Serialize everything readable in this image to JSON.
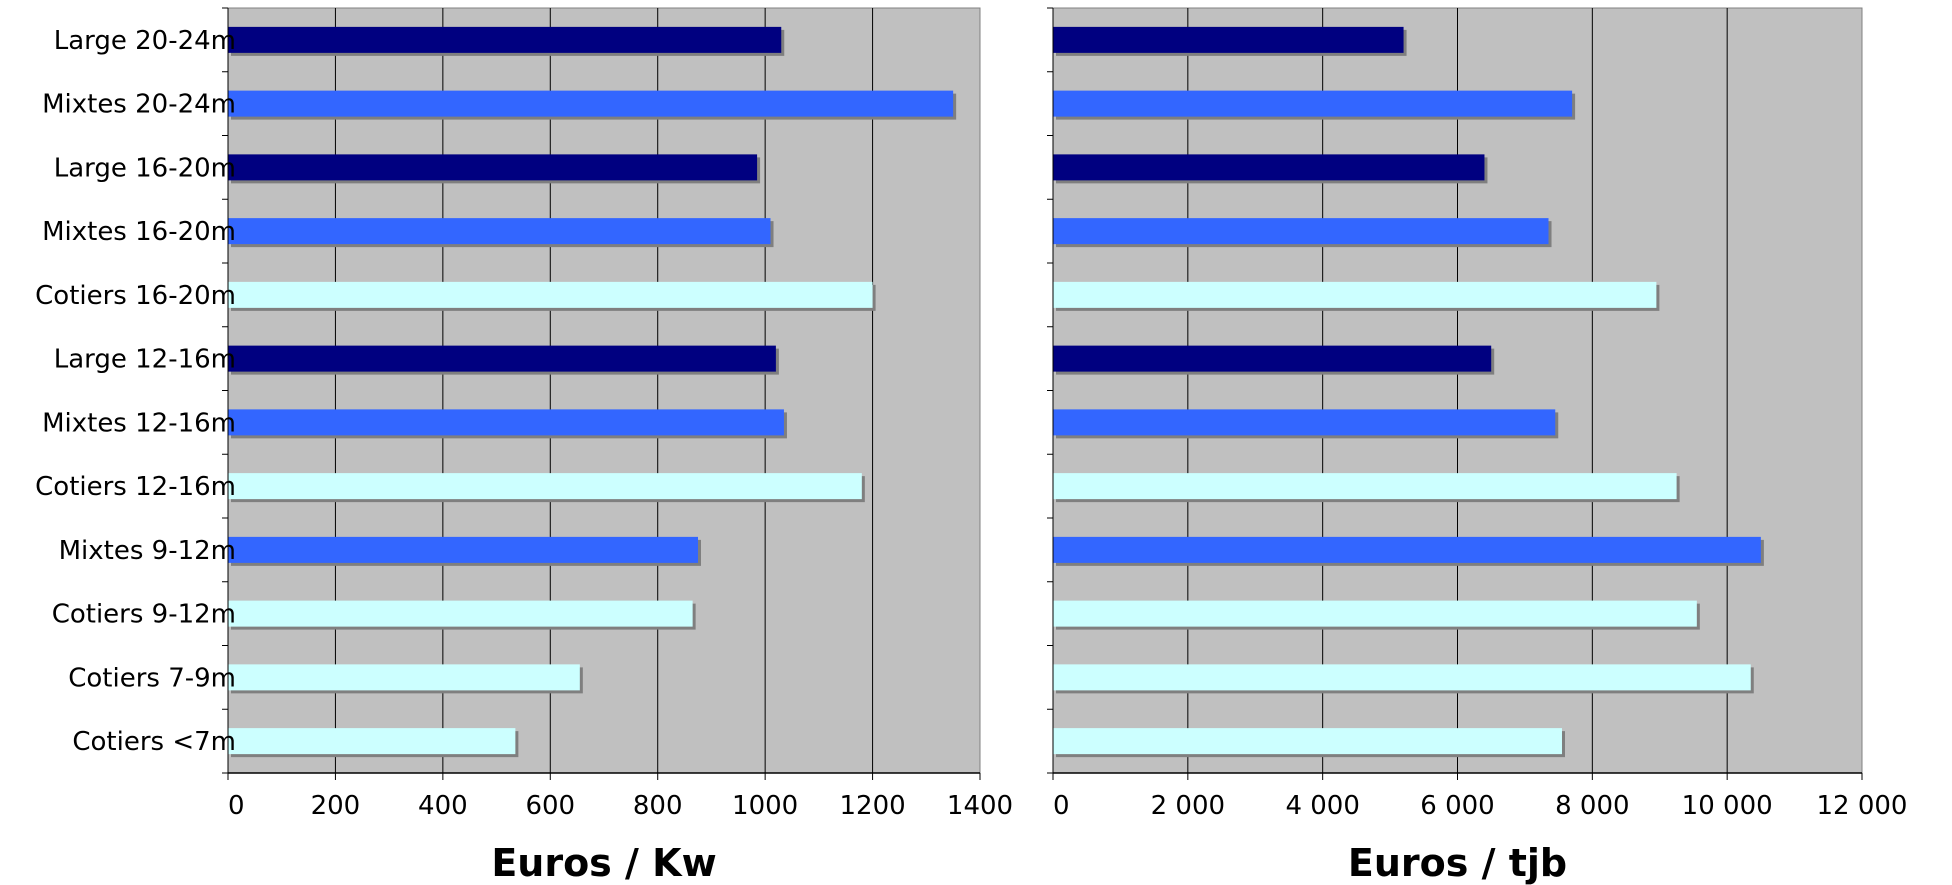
{
  "chart_data": [
    {
      "type": "bar",
      "orientation": "horizontal",
      "categories": [
        "Large 20-24m",
        "Mixtes 20-24m",
        "Large 16-20m",
        "Mixtes 16-20m",
        "Cotiers 16-20m",
        "Large 12-16m",
        "Mixtes 12-16m",
        "Cotiers 12-16m",
        "Mixtes 9-12m",
        "Cotiers 9-12m",
        "Cotiers 7-9m",
        "Cotiers <7m"
      ],
      "values": [
        1030,
        1350,
        985,
        1010,
        1200,
        1020,
        1035,
        1180,
        875,
        865,
        655,
        535
      ],
      "bar_colors": [
        "#000080",
        "#3366ff",
        "#000080",
        "#3366ff",
        "#ccffff",
        "#000080",
        "#3366ff",
        "#ccffff",
        "#3366ff",
        "#ccffff",
        "#ccffff",
        "#ccffff"
      ],
      "xlabel": "Euros / Kw",
      "xlim": [
        0,
        1400
      ],
      "xticks": [
        0,
        200,
        400,
        600,
        800,
        1000,
        1200,
        1400
      ],
      "xtick_labels": [
        "0",
        "200",
        "400",
        "600",
        "800",
        "1000",
        "1200",
        "1400"
      ],
      "plot_background": "#c0c0c0",
      "gridlines": true
    },
    {
      "type": "bar",
      "orientation": "horizontal",
      "categories": [
        "Large 20-24m",
        "Mixtes 20-24m",
        "Large 16-20m",
        "Mixtes 16-20m",
        "Cotiers 16-20m",
        "Large 12-16m",
        "Mixtes 12-16m",
        "Cotiers 12-16m",
        "Mixtes 9-12m",
        "Cotiers 9-12m",
        "Cotiers 7-9m",
        "Cotiers <7m"
      ],
      "values": [
        5200,
        7700,
        6400,
        7350,
        8950,
        6500,
        7450,
        9250,
        10500,
        9550,
        10350,
        7550
      ],
      "bar_colors": [
        "#000080",
        "#3366ff",
        "#000080",
        "#3366ff",
        "#ccffff",
        "#000080",
        "#3366ff",
        "#ccffff",
        "#3366ff",
        "#ccffff",
        "#ccffff",
        "#ccffff"
      ],
      "xlabel": "Euros / tjb",
      "xlim": [
        0,
        12000
      ],
      "xticks": [
        0,
        2000,
        4000,
        6000,
        8000,
        10000,
        12000
      ],
      "xtick_labels": [
        "0",
        "2 000",
        "4 000",
        "6 000",
        "8 000",
        "10 000",
        "12 000"
      ],
      "plot_background": "#c0c0c0",
      "gridlines": true
    }
  ]
}
